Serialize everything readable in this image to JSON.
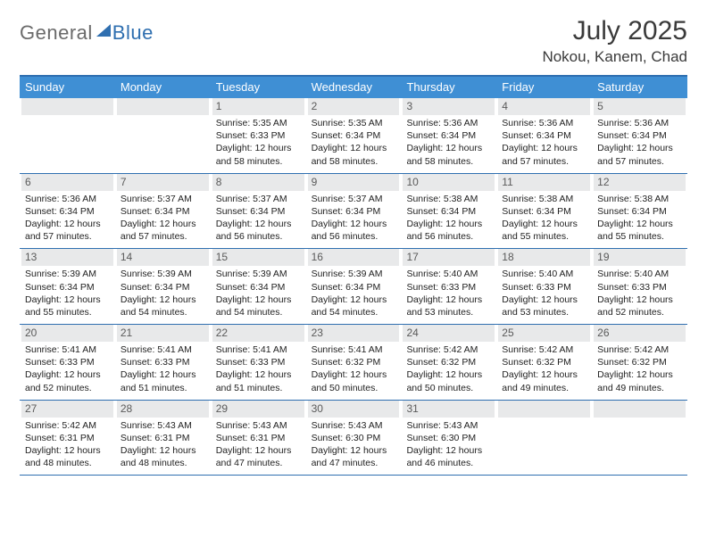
{
  "brand": {
    "part1": "General",
    "part2": "Blue"
  },
  "title": "July 2025",
  "location": "Nokou, Kanem, Chad",
  "colors": {
    "header_bg": "#3f8fd4",
    "rule": "#2f6fb0",
    "daynum_bg": "#e8e9ea",
    "text": "#222222"
  },
  "dow": [
    "Sunday",
    "Monday",
    "Tuesday",
    "Wednesday",
    "Thursday",
    "Friday",
    "Saturday"
  ],
  "weeks": [
    [
      null,
      null,
      {
        "n": "1",
        "sr": "5:35 AM",
        "ss": "6:33 PM",
        "dl": "12 hours and 58 minutes."
      },
      {
        "n": "2",
        "sr": "5:35 AM",
        "ss": "6:34 PM",
        "dl": "12 hours and 58 minutes."
      },
      {
        "n": "3",
        "sr": "5:36 AM",
        "ss": "6:34 PM",
        "dl": "12 hours and 58 minutes."
      },
      {
        "n": "4",
        "sr": "5:36 AM",
        "ss": "6:34 PM",
        "dl": "12 hours and 57 minutes."
      },
      {
        "n": "5",
        "sr": "5:36 AM",
        "ss": "6:34 PM",
        "dl": "12 hours and 57 minutes."
      }
    ],
    [
      {
        "n": "6",
        "sr": "5:36 AM",
        "ss": "6:34 PM",
        "dl": "12 hours and 57 minutes."
      },
      {
        "n": "7",
        "sr": "5:37 AM",
        "ss": "6:34 PM",
        "dl": "12 hours and 57 minutes."
      },
      {
        "n": "8",
        "sr": "5:37 AM",
        "ss": "6:34 PM",
        "dl": "12 hours and 56 minutes."
      },
      {
        "n": "9",
        "sr": "5:37 AM",
        "ss": "6:34 PM",
        "dl": "12 hours and 56 minutes."
      },
      {
        "n": "10",
        "sr": "5:38 AM",
        "ss": "6:34 PM",
        "dl": "12 hours and 56 minutes."
      },
      {
        "n": "11",
        "sr": "5:38 AM",
        "ss": "6:34 PM",
        "dl": "12 hours and 55 minutes."
      },
      {
        "n": "12",
        "sr": "5:38 AM",
        "ss": "6:34 PM",
        "dl": "12 hours and 55 minutes."
      }
    ],
    [
      {
        "n": "13",
        "sr": "5:39 AM",
        "ss": "6:34 PM",
        "dl": "12 hours and 55 minutes."
      },
      {
        "n": "14",
        "sr": "5:39 AM",
        "ss": "6:34 PM",
        "dl": "12 hours and 54 minutes."
      },
      {
        "n": "15",
        "sr": "5:39 AM",
        "ss": "6:34 PM",
        "dl": "12 hours and 54 minutes."
      },
      {
        "n": "16",
        "sr": "5:39 AM",
        "ss": "6:34 PM",
        "dl": "12 hours and 54 minutes."
      },
      {
        "n": "17",
        "sr": "5:40 AM",
        "ss": "6:33 PM",
        "dl": "12 hours and 53 minutes."
      },
      {
        "n": "18",
        "sr": "5:40 AM",
        "ss": "6:33 PM",
        "dl": "12 hours and 53 minutes."
      },
      {
        "n": "19",
        "sr": "5:40 AM",
        "ss": "6:33 PM",
        "dl": "12 hours and 52 minutes."
      }
    ],
    [
      {
        "n": "20",
        "sr": "5:41 AM",
        "ss": "6:33 PM",
        "dl": "12 hours and 52 minutes."
      },
      {
        "n": "21",
        "sr": "5:41 AM",
        "ss": "6:33 PM",
        "dl": "12 hours and 51 minutes."
      },
      {
        "n": "22",
        "sr": "5:41 AM",
        "ss": "6:33 PM",
        "dl": "12 hours and 51 minutes."
      },
      {
        "n": "23",
        "sr": "5:41 AM",
        "ss": "6:32 PM",
        "dl": "12 hours and 50 minutes."
      },
      {
        "n": "24",
        "sr": "5:42 AM",
        "ss": "6:32 PM",
        "dl": "12 hours and 50 minutes."
      },
      {
        "n": "25",
        "sr": "5:42 AM",
        "ss": "6:32 PM",
        "dl": "12 hours and 49 minutes."
      },
      {
        "n": "26",
        "sr": "5:42 AM",
        "ss": "6:32 PM",
        "dl": "12 hours and 49 minutes."
      }
    ],
    [
      {
        "n": "27",
        "sr": "5:42 AM",
        "ss": "6:31 PM",
        "dl": "12 hours and 48 minutes."
      },
      {
        "n": "28",
        "sr": "5:43 AM",
        "ss": "6:31 PM",
        "dl": "12 hours and 48 minutes."
      },
      {
        "n": "29",
        "sr": "5:43 AM",
        "ss": "6:31 PM",
        "dl": "12 hours and 47 minutes."
      },
      {
        "n": "30",
        "sr": "5:43 AM",
        "ss": "6:30 PM",
        "dl": "12 hours and 47 minutes."
      },
      {
        "n": "31",
        "sr": "5:43 AM",
        "ss": "6:30 PM",
        "dl": "12 hours and 46 minutes."
      },
      null,
      null
    ]
  ],
  "labels": {
    "sunrise": "Sunrise:",
    "sunset": "Sunset:",
    "daylight": "Daylight:"
  }
}
